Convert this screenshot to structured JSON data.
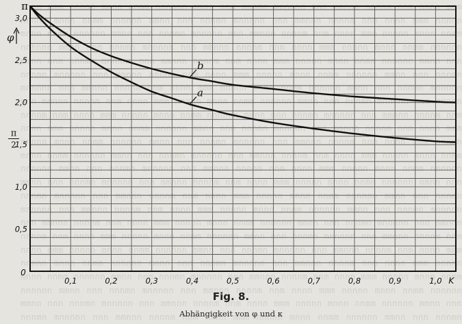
{
  "caption": {
    "title": "Fig. 8.",
    "subtitle": "Abhängigkeit von φ und κ"
  },
  "chart_data": {
    "type": "line",
    "title": "Fig. 8.",
    "subtitle": "Abhängigkeit von φ und κ",
    "xlabel": "K",
    "ylabel": "φ",
    "xlim": [
      0,
      1.05
    ],
    "ylim": [
      0,
      3.1416
    ],
    "grid": true,
    "x_ticks": [
      {
        "value": 0.1,
        "label": "0,1"
      },
      {
        "value": 0.2,
        "label": "0,2"
      },
      {
        "value": 0.3,
        "label": "0,3"
      },
      {
        "value": 0.4,
        "label": "0,4"
      },
      {
        "value": 0.5,
        "label": "0,5"
      },
      {
        "value": 0.6,
        "label": "0,6"
      },
      {
        "value": 0.7,
        "label": "0,7"
      },
      {
        "value": 0.8,
        "label": "0,8"
      },
      {
        "value": 0.9,
        "label": "0,9"
      },
      {
        "value": 1.0,
        "label": "1,0"
      }
    ],
    "y_ticks": [
      {
        "value": 0.5,
        "label": "0,5"
      },
      {
        "value": 1.0,
        "label": "1,0"
      },
      {
        "value": 1.5,
        "label": "1,5"
      },
      {
        "value": 2.0,
        "label": "2,0"
      },
      {
        "value": 2.5,
        "label": "2,5"
      },
      {
        "value": 3.0,
        "label": "3,0"
      }
    ],
    "y_special_ticks": [
      {
        "value": 3.1416,
        "label": "π"
      },
      {
        "value": 1.5708,
        "label": "π/2"
      }
    ],
    "origin_label": "0",
    "series": [
      {
        "name": "b",
        "x": [
          0,
          0.02,
          0.05,
          0.1,
          0.15,
          0.2,
          0.25,
          0.3,
          0.35,
          0.4,
          0.45,
          0.5,
          0.6,
          0.7,
          0.8,
          0.9,
          1.0,
          1.05
        ],
        "y": [
          3.1416,
          3.05,
          2.94,
          2.78,
          2.65,
          2.55,
          2.47,
          2.4,
          2.34,
          2.29,
          2.25,
          2.21,
          2.16,
          2.11,
          2.07,
          2.04,
          2.01,
          2.0
        ]
      },
      {
        "name": "a",
        "x": [
          0,
          0.02,
          0.05,
          0.1,
          0.15,
          0.2,
          0.25,
          0.3,
          0.35,
          0.4,
          0.45,
          0.5,
          0.6,
          0.7,
          0.8,
          0.9,
          1.0,
          1.05
        ],
        "y": [
          3.1416,
          3.02,
          2.87,
          2.66,
          2.5,
          2.36,
          2.24,
          2.13,
          2.05,
          1.97,
          1.91,
          1.85,
          1.76,
          1.69,
          1.63,
          1.58,
          1.54,
          1.53
        ]
      }
    ]
  }
}
